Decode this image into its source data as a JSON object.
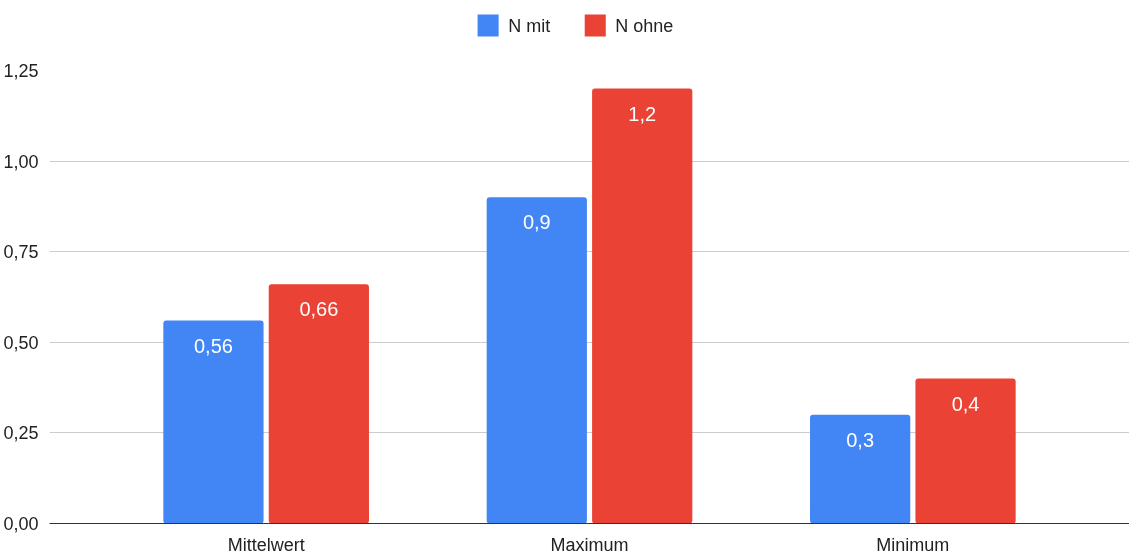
{
  "chart_data": {
    "type": "bar",
    "categories": [
      "Mittelwert",
      "Maximum",
      "Minimum"
    ],
    "series": [
      {
        "name": "N mit",
        "color": "#4285f4",
        "values": [
          0.56,
          0.9,
          0.3
        ],
        "value_labels": [
          "0,56",
          "0,9",
          "0,3"
        ]
      },
      {
        "name": "N ohne",
        "color": "#ea4335",
        "values": [
          0.66,
          1.2,
          0.4
        ],
        "value_labels": [
          "0,66",
          "1,2",
          "0,4"
        ]
      }
    ],
    "ylim": [
      0,
      1.25
    ],
    "yticks": [
      {
        "value": 0,
        "label": "0,00"
      },
      {
        "value": 0.25,
        "label": "0,25"
      },
      {
        "value": 0.5,
        "label": "0,50"
      },
      {
        "value": 0.75,
        "label": "0,75"
      },
      {
        "value": 1.0,
        "label": "1,00"
      },
      {
        "value": 1.25,
        "label": "1,25"
      }
    ],
    "grid": "y",
    "legend": "top"
  }
}
